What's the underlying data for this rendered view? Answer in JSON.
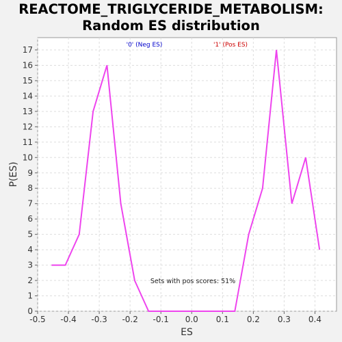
{
  "chart_data": {
    "type": "line",
    "title_lines": [
      "REACTOME_TRIGLYCERIDE_METABOLISM:",
      "Random ES distribution"
    ],
    "xlabel": "ES",
    "ylabel": "P(ES)",
    "xlim": [
      -0.5,
      0.47
    ],
    "ylim": [
      0,
      17.8
    ],
    "x_ticks": [
      "-0.5",
      "-0.4",
      "-0.3",
      "-0.2",
      "-0.1",
      "0.0",
      "0.1",
      "0.2",
      "0.3",
      "0.4"
    ],
    "y_ticks": [
      "0",
      "1",
      "2",
      "3",
      "4",
      "5",
      "6",
      "7",
      "8",
      "9",
      "10",
      "11",
      "12",
      "13",
      "14",
      "15",
      "16",
      "17"
    ],
    "grid": true,
    "legend": [
      {
        "label": "'0' (Neg ES)",
        "color": "#0000cc"
      },
      {
        "label": "'1' (Pos ES)",
        "color": "#cc0000"
      }
    ],
    "annotation": "Sets with pos scores: 51%",
    "line_color": "#ee44ee",
    "series": [
      {
        "x": [
          -0.455,
          -0.41,
          -0.365,
          -0.32,
          -0.275,
          -0.23,
          -0.185,
          -0.14,
          -0.095,
          -0.05,
          -0.005,
          0.04,
          0.09,
          0.14,
          0.185,
          0.23,
          0.275,
          0.325,
          0.37,
          0.415
        ],
        "y": [
          3,
          3,
          5,
          13,
          16,
          7,
          2,
          0,
          0,
          0,
          0,
          0,
          0,
          0,
          5,
          8,
          17,
          7,
          10,
          4
        ]
      }
    ]
  }
}
